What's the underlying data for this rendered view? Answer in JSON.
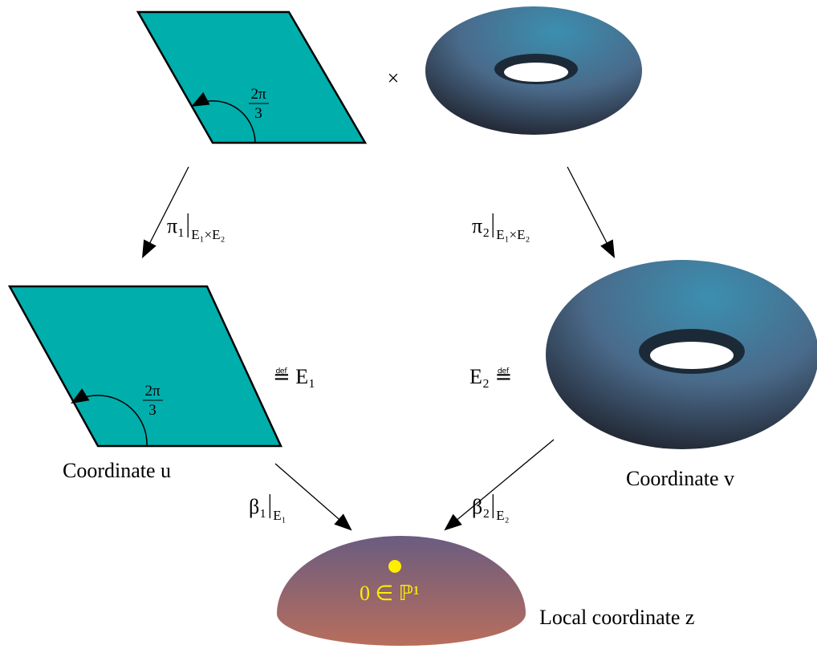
{
  "top": {
    "angle": {
      "numerator": "2π",
      "denominator": "3"
    },
    "product": "×"
  },
  "arrows": [
    {
      "map": "π₁",
      "restriction": "E₁×E₂"
    },
    {
      "map": "π₂",
      "restriction": "E₁×E₂"
    },
    {
      "map": "β₁",
      "restriction": "E₁"
    },
    {
      "map": "β₂",
      "restriction": "E₂"
    }
  ],
  "E1": {
    "angle": {
      "numerator": "2π",
      "denominator": "3"
    },
    "definition": "≝ E₁",
    "caption": "Coordinate u"
  },
  "E2": {
    "definition": "E₂ ≝",
    "caption": "Coordinate v"
  },
  "P1": {
    "point_label": "0 ∈ ℙ¹",
    "caption": "Local coordinate z"
  }
}
